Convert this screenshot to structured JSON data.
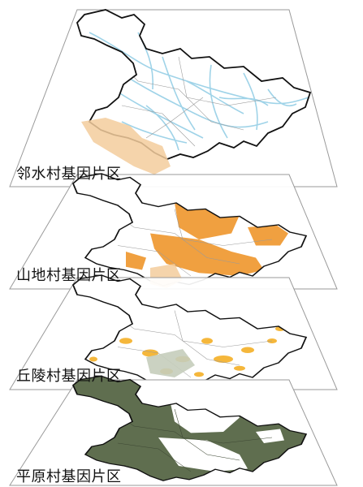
{
  "layers": [
    {
      "label": "邻水村基因片区",
      "fill_color": "#a8d8ea",
      "pattern": "river-network"
    },
    {
      "label": "山地村基因片区",
      "fill_color": "#f0a040",
      "pattern": "large-patches"
    },
    {
      "label": "丘陵村基因片区",
      "fill_color": "#f5b73b",
      "pattern": "scattered-patches"
    },
    {
      "label": "平原村基因片区",
      "fill_color": "#5f6e4f",
      "pattern": "mostly-filled"
    }
  ],
  "colors": {
    "plane_border": "#9a9a9a",
    "county_lines": "#8a8a8a",
    "province_outline": "#111111",
    "river": "#9fd3e8",
    "ghost_orange": "#f3cc9c",
    "ghost_green": "#c5cdbb"
  }
}
